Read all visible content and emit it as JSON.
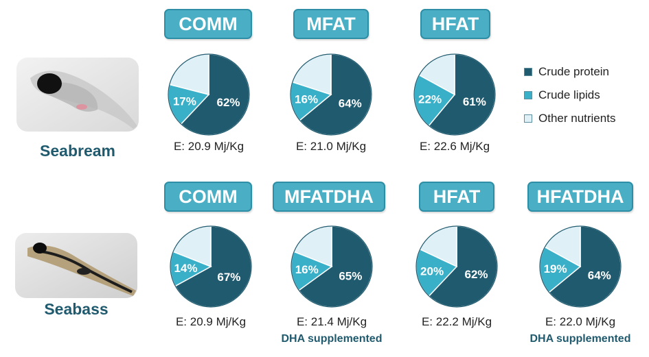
{
  "legend": {
    "items": [
      {
        "label": "Crude protein",
        "color": "#1f5a6e"
      },
      {
        "label": "Crude lipids",
        "color": "#3ab0c8"
      },
      {
        "label": "Other nutrients",
        "color": "#dff0f6"
      }
    ]
  },
  "species": [
    {
      "label": "Seabream"
    },
    {
      "label": "Seabass"
    }
  ],
  "chart_data": [
    {
      "type": "pie",
      "species": "Seabream",
      "title": "COMM",
      "categories": [
        "Crude protein",
        "Crude lipids",
        "Other nutrients"
      ],
      "values": [
        62,
        17,
        21
      ],
      "labels": [
        "62%",
        "17%",
        ""
      ],
      "energy": "E: 20.9 Mj/Kg",
      "note": ""
    },
    {
      "type": "pie",
      "species": "Seabream",
      "title": "MFAT",
      "categories": [
        "Crude protein",
        "Crude lipids",
        "Other nutrients"
      ],
      "values": [
        64,
        16,
        20
      ],
      "labels": [
        "64%",
        "16%",
        ""
      ],
      "energy": "E: 21.0 Mj/Kg",
      "note": ""
    },
    {
      "type": "pie",
      "species": "Seabream",
      "title": "HFAT",
      "categories": [
        "Crude protein",
        "Crude lipids",
        "Other nutrients"
      ],
      "values": [
        61,
        22,
        17
      ],
      "labels": [
        "61%",
        "22%",
        ""
      ],
      "energy": "E: 22.6 Mj/Kg",
      "note": ""
    },
    {
      "type": "pie",
      "species": "Seabass",
      "title": "COMM",
      "categories": [
        "Crude protein",
        "Crude lipids",
        "Other nutrients"
      ],
      "values": [
        67,
        14,
        19
      ],
      "labels": [
        "67%",
        "14%",
        ""
      ],
      "energy": "E: 20.9 Mj/Kg",
      "note": ""
    },
    {
      "type": "pie",
      "species": "Seabass",
      "title": "MFATDHA",
      "categories": [
        "Crude protein",
        "Crude lipids",
        "Other nutrients"
      ],
      "values": [
        65,
        16,
        19
      ],
      "labels": [
        "65%",
        "16%",
        ""
      ],
      "energy": "E: 21.4 Mj/Kg",
      "note": "DHA supplemented"
    },
    {
      "type": "pie",
      "species": "Seabass",
      "title": "HFAT",
      "categories": [
        "Crude protein",
        "Crude lipids",
        "Other nutrients"
      ],
      "values": [
        62,
        20,
        18
      ],
      "labels": [
        "62%",
        "20%",
        ""
      ],
      "energy": "E: 22.2 Mj/Kg",
      "note": ""
    },
    {
      "type": "pie",
      "species": "Seabass",
      "title": "HFATDHA",
      "categories": [
        "Crude protein",
        "Crude lipids",
        "Other nutrients"
      ],
      "values": [
        64,
        19,
        17
      ],
      "labels": [
        "64%",
        "19%",
        ""
      ],
      "energy": "E: 22.0 Mj/Kg",
      "note": "DHA supplemented"
    }
  ]
}
